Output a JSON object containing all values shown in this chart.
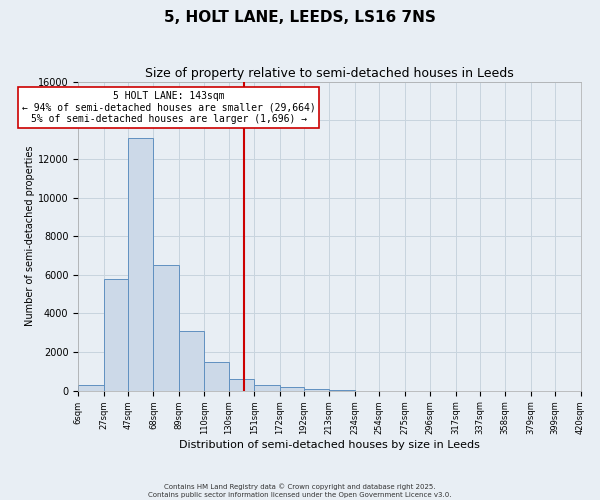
{
  "title": "5, HOLT LANE, LEEDS, LS16 7NS",
  "subtitle": "Size of property relative to semi-detached houses in Leeds",
  "xlabel": "Distribution of semi-detached houses by size in Leeds",
  "ylabel": "Number of semi-detached properties",
  "bin_labels": [
    "6sqm",
    "27sqm",
    "47sqm",
    "68sqm",
    "89sqm",
    "110sqm",
    "130sqm",
    "151sqm",
    "172sqm",
    "192sqm",
    "213sqm",
    "234sqm",
    "254sqm",
    "275sqm",
    "296sqm",
    "317sqm",
    "337sqm",
    "358sqm",
    "379sqm",
    "399sqm",
    "420sqm"
  ],
  "bin_edges": [
    6,
    27,
    47,
    68,
    89,
    110,
    130,
    151,
    172,
    192,
    213,
    234,
    254,
    275,
    296,
    317,
    337,
    358,
    379,
    399,
    420
  ],
  "bar_heights": [
    300,
    5800,
    13100,
    6500,
    3100,
    1500,
    600,
    300,
    200,
    100,
    50,
    0,
    0,
    0,
    0,
    0,
    0,
    0,
    0,
    0
  ],
  "bar_color": "#ccd9e8",
  "bar_edge_color": "#6090c0",
  "vline_x": 143,
  "vline_color": "#cc0000",
  "ylim": [
    0,
    16000
  ],
  "yticks": [
    0,
    2000,
    4000,
    6000,
    8000,
    10000,
    12000,
    14000,
    16000
  ],
  "annotation_title": "5 HOLT LANE: 143sqm",
  "annotation_line1": "← 94% of semi-detached houses are smaller (29,664)",
  "annotation_line2": "5% of semi-detached houses are larger (1,696) →",
  "footer1": "Contains HM Land Registry data © Crown copyright and database right 2025.",
  "footer2": "Contains public sector information licensed under the Open Government Licence v3.0.",
  "bg_color": "#e8eef4",
  "grid_color": "#c8d4de",
  "title_fontsize": 11,
  "subtitle_fontsize": 9
}
